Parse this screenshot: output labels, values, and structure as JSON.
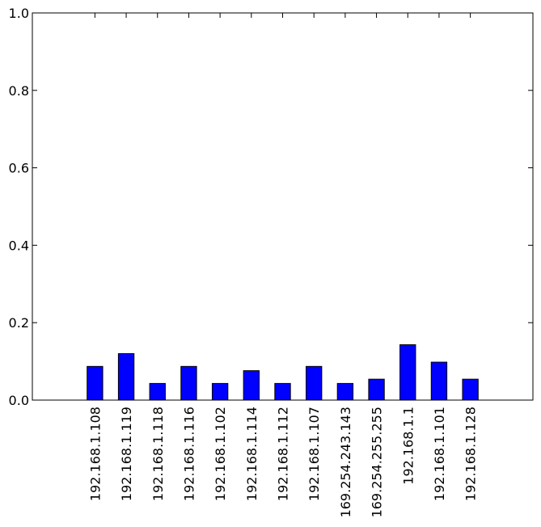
{
  "chart_data": {
    "type": "bar",
    "title": "",
    "xlabel": "",
    "ylabel": "",
    "categories": [
      "192.168.1.108",
      "192.168.1.119",
      "192.168.1.118",
      "192.168.1.116",
      "192.168.1.102",
      "192.168.1.114",
      "192.168.1.112",
      "192.168.1.107",
      "169.254.243.143",
      "169.254.255.255",
      "192.168.1.1",
      "192.168.1.101",
      "192.168.1.128"
    ],
    "values": [
      0.087,
      0.12,
      0.043,
      0.087,
      0.043,
      0.076,
      0.043,
      0.087,
      0.043,
      0.054,
      0.143,
      0.098,
      0.054
    ],
    "ylim": [
      0,
      1.0
    ],
    "yticks": [
      "0.0",
      "0.2",
      "0.4",
      "0.6",
      "0.8",
      "1.0"
    ],
    "bar_color": "#0000ff",
    "edge_color": "#000000",
    "grid": false,
    "legend": false
  }
}
